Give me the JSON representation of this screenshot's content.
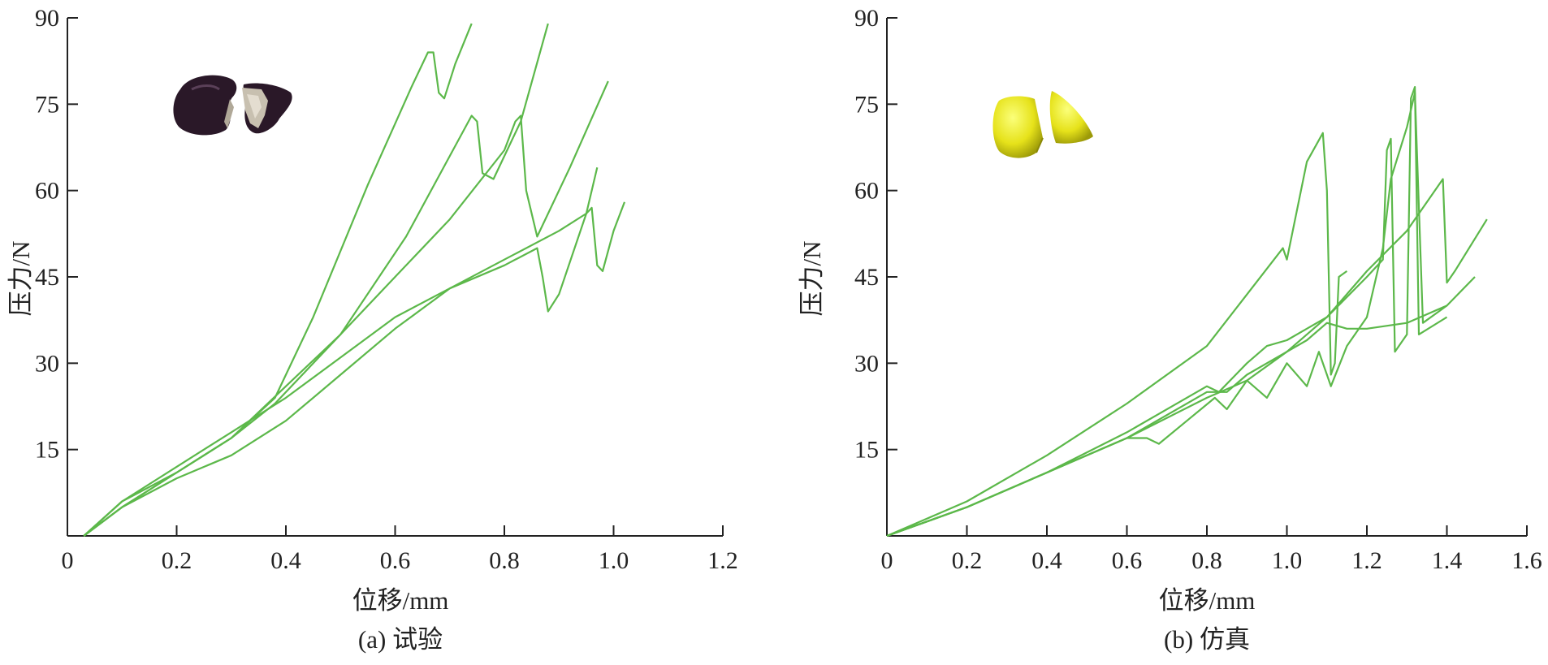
{
  "chart_data": [
    {
      "type": "line",
      "caption": "(a) 试验",
      "xlabel": "位移/mm",
      "ylabel": "压力/N",
      "xlim": [
        0,
        1.2
      ],
      "ylim": [
        0,
        90
      ],
      "xticks": [
        0,
        0.2,
        0.4,
        0.6,
        0.8,
        1.0,
        1.2
      ],
      "xtick_labels": [
        "0",
        "0.2",
        "0.4",
        "0.6",
        "0.8",
        "1.0",
        "1.2"
      ],
      "yticks": [
        15,
        30,
        45,
        60,
        75,
        90
      ],
      "ytick_labels": [
        "15",
        "30",
        "45",
        "60",
        "75",
        "90"
      ],
      "line_color": "#5cb84a",
      "inset": "cracked-seed-photo",
      "series": [
        {
          "x": [
            0.03,
            0.1,
            0.2,
            0.3,
            0.38,
            0.45,
            0.55,
            0.63,
            0.66,
            0.67,
            0.68,
            0.69,
            0.71,
            0.74
          ],
          "y": [
            0,
            6,
            11,
            17,
            24,
            38,
            61,
            78,
            84,
            84,
            77,
            76,
            82,
            89
          ]
        },
        {
          "x": [
            0.03,
            0.1,
            0.2,
            0.3,
            0.38,
            0.5,
            0.62,
            0.7,
            0.74,
            0.75,
            0.76,
            0.78,
            0.83,
            0.88
          ],
          "y": [
            0,
            5,
            11,
            17,
            23,
            35,
            52,
            66,
            73,
            72,
            63,
            62,
            72,
            89
          ]
        },
        {
          "x": [
            0.03,
            0.1,
            0.2,
            0.3,
            0.4,
            0.5,
            0.6,
            0.7,
            0.8,
            0.82,
            0.83,
            0.84,
            0.86,
            0.92,
            0.99
          ],
          "y": [
            0,
            5,
            11,
            17,
            26,
            35,
            45,
            55,
            67,
            72,
            73,
            60,
            52,
            64,
            79
          ]
        },
        {
          "x": [
            0.03,
            0.1,
            0.2,
            0.3,
            0.4,
            0.5,
            0.6,
            0.7,
            0.8,
            0.86,
            0.87,
            0.88,
            0.9,
            0.95,
            0.97
          ],
          "y": [
            0,
            6,
            12,
            18,
            24,
            31,
            38,
            43,
            47,
            50,
            45,
            39,
            42,
            56,
            64
          ]
        },
        {
          "x": [
            0.03,
            0.1,
            0.2,
            0.3,
            0.4,
            0.5,
            0.6,
            0.7,
            0.8,
            0.9,
            0.95,
            0.96,
            0.97,
            0.98,
            1.0,
            1.02
          ],
          "y": [
            0,
            5,
            10,
            14,
            20,
            28,
            36,
            43,
            48,
            53,
            56,
            57,
            47,
            46,
            53,
            58
          ]
        }
      ]
    },
    {
      "type": "line",
      "caption": "(b) 仿真",
      "xlabel": "位移/mm",
      "ylabel": "压力/N",
      "xlim": [
        0,
        1.6
      ],
      "ylim": [
        0,
        90
      ],
      "xticks": [
        0,
        0.2,
        0.4,
        0.6,
        0.8,
        1.0,
        1.2,
        1.4,
        1.6
      ],
      "xtick_labels": [
        "0",
        "0.2",
        "0.4",
        "0.6",
        "0.8",
        "1.0",
        "1.2",
        "1.4",
        "1.6"
      ],
      "yticks": [
        15,
        30,
        45,
        60,
        75,
        90
      ],
      "ytick_labels": [
        "15",
        "30",
        "45",
        "60",
        "75",
        "90"
      ],
      "line_color": "#5cb84a",
      "inset": "split-seed-model",
      "series": [
        {
          "x": [
            0,
            0.2,
            0.4,
            0.6,
            0.8,
            0.99,
            1.0,
            1.05,
            1.09,
            1.1,
            1.11,
            1.12,
            1.13,
            1.15
          ],
          "y": [
            0,
            6,
            14,
            23,
            33,
            50,
            48,
            65,
            70,
            60,
            28,
            30,
            45,
            46
          ]
        },
        {
          "x": [
            0,
            0.2,
            0.4,
            0.6,
            0.8,
            0.83,
            0.9,
            0.95,
            1.0,
            1.05,
            1.1,
            1.2,
            1.24,
            1.25,
            1.26,
            1.27,
            1.3,
            1.31,
            1.32,
            1.33,
            1.4
          ],
          "y": [
            0,
            5,
            11,
            18,
            26,
            25,
            30,
            33,
            34,
            36,
            38,
            45,
            48,
            67,
            69,
            32,
            35,
            76,
            78,
            35,
            38
          ]
        },
        {
          "x": [
            0,
            0.2,
            0.4,
            0.6,
            0.65,
            0.68,
            0.75,
            0.82,
            0.85,
            0.9,
            0.95,
            1.0,
            1.05,
            1.08,
            1.1,
            1.11,
            1.15,
            1.2,
            1.24,
            1.26,
            1.3,
            1.32,
            1.34,
            1.4
          ],
          "y": [
            0,
            5,
            11,
            17,
            17,
            16,
            20,
            24,
            22,
            27,
            24,
            30,
            26,
            32,
            28,
            26,
            33,
            38,
            50,
            62,
            71,
            77,
            37,
            40
          ]
        },
        {
          "x": [
            0,
            0.2,
            0.4,
            0.6,
            0.8,
            0.9,
            1.0,
            1.1,
            1.2,
            1.3,
            1.39,
            1.4,
            1.42,
            1.5
          ],
          "y": [
            0,
            5,
            11,
            17,
            24,
            27,
            32,
            38,
            46,
            53,
            62,
            44,
            46,
            55
          ]
        },
        {
          "x": [
            0,
            0.2,
            0.4,
            0.6,
            0.8,
            0.85,
            0.9,
            0.95,
            1.0,
            1.05,
            1.1,
            1.15,
            1.18,
            1.2,
            1.3,
            1.4,
            1.47
          ],
          "y": [
            0,
            5,
            11,
            17,
            25,
            25,
            28,
            30,
            32,
            34,
            37,
            36,
            36,
            36,
            37,
            40,
            45
          ]
        }
      ]
    }
  ]
}
